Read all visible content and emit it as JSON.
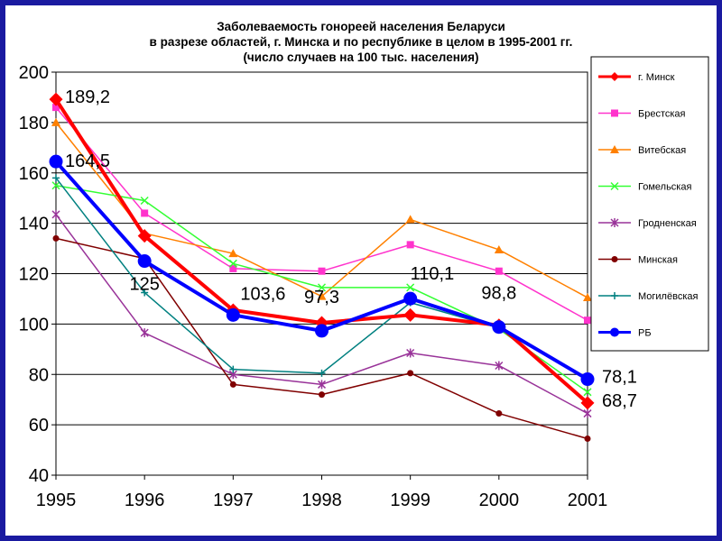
{
  "chart_data": {
    "type": "line",
    "title": [
      "Заболеваемость гонореей населения Беларуси",
      "в разрезе областей, г. Минска и по республике в целом в 1995-2001 гг.",
      "(число случаев на 100 тыс. населения)"
    ],
    "x": [
      "1995",
      "1996",
      "1997",
      "1998",
      "1999",
      "2000",
      "2001"
    ],
    "y_ticks": [
      "40",
      "60",
      "80",
      "100",
      "120",
      "140",
      "160",
      "180",
      "200"
    ],
    "ylim": [
      40,
      200
    ],
    "grid": true,
    "legend_position": "right",
    "series": [
      {
        "name": "г. Минск",
        "color": "#ff0000",
        "marker": "diamond",
        "bold": true,
        "values": [
          189.2,
          135,
          105.5,
          100.5,
          103.6,
          99.5,
          68.7
        ]
      },
      {
        "name": "Брестская",
        "color": "#ff33cc",
        "marker": "square",
        "values": [
          186,
          144,
          122,
          121,
          131.5,
          121,
          101.5
        ]
      },
      {
        "name": "Витебская",
        "color": "#ff8000",
        "marker": "triangle",
        "values": [
          180,
          136,
          128,
          111,
          141.5,
          129.5,
          110.5
        ]
      },
      {
        "name": "Гомельская",
        "color": "#33ff33",
        "marker": "x",
        "values": [
          155,
          149,
          124,
          114.5,
          114.5,
          98,
          73
        ]
      },
      {
        "name": "Гродненская",
        "color": "#993399",
        "marker": "star",
        "values": [
          143.5,
          96.5,
          80,
          76,
          88.5,
          83.5,
          64.5
        ]
      },
      {
        "name": "Минская",
        "color": "#800000",
        "marker": "circle",
        "values": [
          134,
          126,
          76,
          72,
          80.5,
          64.5,
          54.5
        ]
      },
      {
        "name": "Могилёвская",
        "color": "#008080",
        "marker": "plus",
        "values": [
          158,
          112.5,
          82,
          80.5,
          108.5,
          98.5,
          78
        ]
      },
      {
        "name": "РБ",
        "color": "#0000ff",
        "marker": "bigcircle",
        "bold": true,
        "values": [
          164.5,
          125,
          103.6,
          97.3,
          110.1,
          98.8,
          78.1
        ]
      }
    ],
    "annotations": [
      {
        "text": "189,2",
        "x": "1995",
        "y": 189.2
      },
      {
        "text": "164,5",
        "x": "1995",
        "y": 164.5
      },
      {
        "text": "125",
        "x": "1996",
        "y": 125
      },
      {
        "text": "103,6",
        "x": "1997",
        "y": 103.6
      },
      {
        "text": "97,3",
        "x": "1998",
        "y": 97.3
      },
      {
        "text": "110,1",
        "x": "1999",
        "y": 110.1
      },
      {
        "text": "98,8",
        "x": "2000",
        "y": 98.8
      },
      {
        "text": "78,1",
        "x": "2001",
        "y": 78.1
      },
      {
        "text": "68,7",
        "x": "2001",
        "y": 68.7
      }
    ]
  }
}
